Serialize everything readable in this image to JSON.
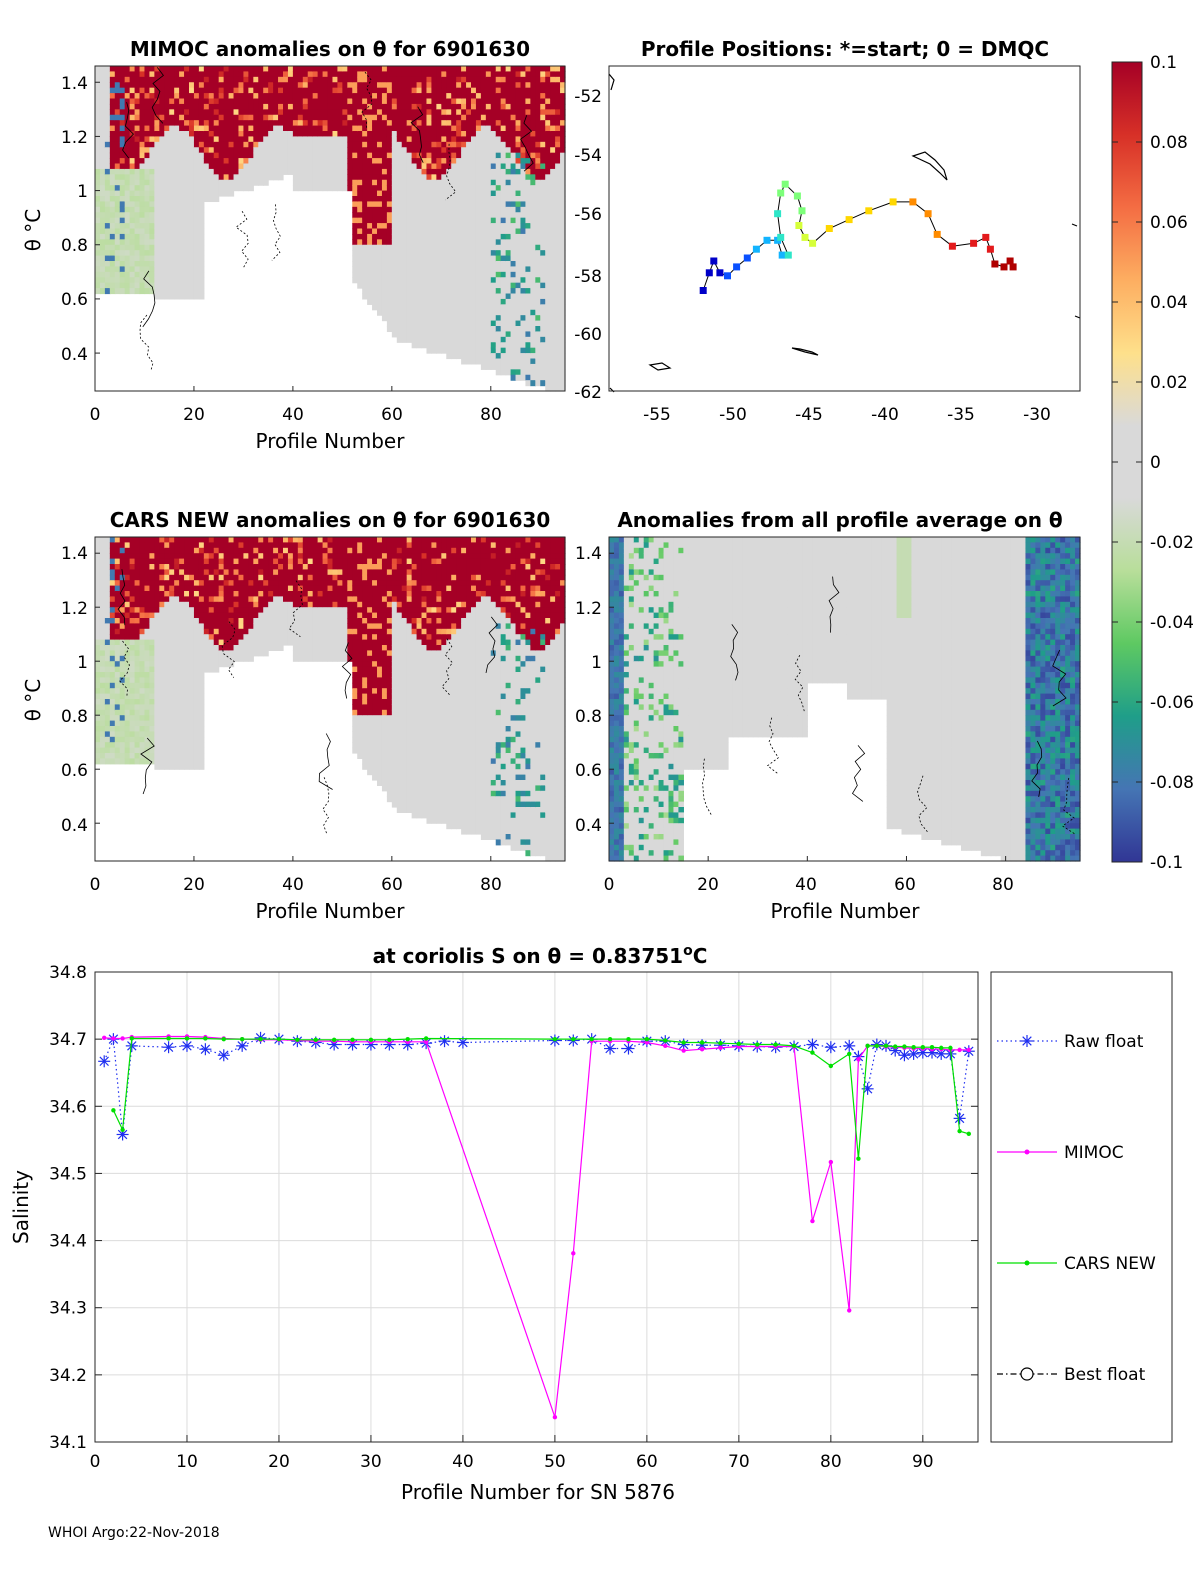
{
  "footer": "WHOI Argo:22-Nov-2018",
  "colormap": {
    "ticks": [
      "0.1",
      "0.08",
      "0.06",
      "0.04",
      "0.02",
      "0",
      "-0.02",
      "-0.04",
      "-0.06",
      "-0.08",
      "-0.1"
    ],
    "values": [
      0.1,
      0.08,
      0.06,
      0.04,
      0.02,
      0,
      -0.02,
      -0.04,
      -0.06,
      -0.08,
      -0.1
    ],
    "stops": [
      "#313695",
      "#4575b4",
      "#1f9e89",
      "#5ec962",
      "#b8de9a",
      "#d9d9d9",
      "#d9d9d9",
      "#fee08b",
      "#fdae61",
      "#f46d43",
      "#d73027",
      "#a50026"
    ]
  },
  "panels": {
    "mimoc_anom": {
      "title": "MIMOC anomalies on θ  for 6901630",
      "xlabel": "Profile Number",
      "ylabel": "θ °C",
      "xticks": [
        "0",
        "20",
        "40",
        "60",
        "80"
      ],
      "yticks": [
        "1.4",
        "1.2",
        "1",
        "0.8",
        "0.6",
        "0.4"
      ],
      "xlim": [
        0,
        95
      ],
      "ylim": [
        0.26,
        1.46
      ]
    },
    "positions": {
      "title": "Profile Positions: *=start; 0 = DMQC",
      "xticks": [
        "-55",
        "-50",
        "-45",
        "-40",
        "-35",
        "-30"
      ],
      "yticks": [
        "-52",
        "-54",
        "-56",
        "-58",
        "-60",
        "-62"
      ],
      "xlim": [
        -58,
        -27
      ],
      "ylim": [
        -62,
        -51
      ]
    },
    "cars_anom": {
      "title": "CARS NEW anomalies on θ for 6901630",
      "xlabel": "Profile Number",
      "ylabel": "θ °C",
      "xticks": [
        "0",
        "20",
        "40",
        "60",
        "80"
      ],
      "yticks": [
        "1.4",
        "1.2",
        "1",
        "0.8",
        "0.6",
        "0.4"
      ],
      "xlim": [
        0,
        95
      ],
      "ylim": [
        0.26,
        1.46
      ]
    },
    "avg_anom": {
      "title": "Anomalies from all profile average on θ",
      "xlabel": "Profile Number",
      "xticks": [
        "0",
        "20",
        "40",
        "60",
        "80"
      ],
      "yticks": [
        "1.4",
        "1.2",
        "1",
        "0.8",
        "0.6",
        "0.4"
      ],
      "xlim": [
        0,
        95
      ],
      "ylim": [
        0.26,
        1.46
      ]
    }
  },
  "chart_data": {
    "type": "line",
    "title": "at coriolis S on θ = 0.83751°C",
    "title_prefix": "at coriolis S on θ = 0.83751",
    "title_sup": "o",
    "title_suffix": "C",
    "xlabel": "Profile Number for SN 5876",
    "ylabel": "Salinity",
    "xlim": [
      0,
      96
    ],
    "ylim": [
      34.1,
      34.8
    ],
    "xticks": [
      0,
      10,
      20,
      30,
      40,
      50,
      60,
      70,
      80,
      90
    ],
    "yticks": [
      34.1,
      34.2,
      34.3,
      34.4,
      34.5,
      34.6,
      34.7,
      34.8
    ],
    "grid": true,
    "series": [
      {
        "name": "Raw float",
        "color": "#1f2ff0",
        "marker": "asterisk",
        "line": "dotted",
        "x": [
          1,
          2,
          3,
          4,
          8,
          10,
          12,
          14,
          16,
          18,
          20,
          22,
          24,
          26,
          28,
          30,
          32,
          34,
          36,
          38,
          40,
          50,
          52,
          54,
          56,
          58,
          60,
          62,
          64,
          66,
          68,
          70,
          72,
          74,
          76,
          78,
          80,
          82,
          83,
          84,
          85,
          86,
          87,
          88,
          89,
          90,
          91,
          92,
          93,
          94,
          95
        ],
        "y": [
          34.667,
          34.7,
          34.558,
          34.69,
          34.688,
          34.69,
          34.685,
          34.676,
          34.69,
          34.702,
          34.7,
          34.697,
          34.695,
          34.692,
          34.692,
          34.692,
          34.692,
          34.692,
          34.694,
          34.697,
          34.695,
          34.698,
          34.698,
          34.7,
          34.686,
          34.686,
          34.697,
          34.697,
          34.692,
          34.691,
          34.691,
          34.69,
          34.689,
          34.688,
          34.689,
          34.692,
          34.688,
          34.69,
          34.674,
          34.626,
          34.692,
          34.69,
          34.683,
          34.676,
          34.678,
          34.68,
          34.68,
          34.678,
          34.678,
          34.582,
          34.682
        ]
      },
      {
        "name": "MIMOC",
        "color": "#ff00ff",
        "marker": "dot",
        "line": "solid",
        "x": [
          1,
          2,
          3,
          4,
          8,
          10,
          12,
          14,
          16,
          18,
          20,
          22,
          24,
          26,
          28,
          30,
          32,
          34,
          36,
          50,
          52,
          54,
          56,
          58,
          60,
          62,
          64,
          66,
          68,
          70,
          72,
          74,
          76,
          78,
          80,
          82,
          83,
          84,
          85,
          86,
          87,
          88,
          89,
          90,
          91,
          92,
          93,
          94,
          95
        ],
        "y": [
          34.702,
          34.701,
          34.701,
          34.703,
          34.704,
          34.704,
          34.703,
          34.701,
          34.7,
          34.699,
          34.699,
          34.698,
          34.697,
          34.697,
          34.696,
          34.696,
          34.696,
          34.696,
          34.696,
          34.137,
          34.381,
          34.697,
          34.697,
          34.697,
          34.695,
          34.69,
          34.683,
          34.685,
          34.687,
          34.689,
          34.689,
          34.689,
          34.689,
          34.429,
          34.517,
          34.296,
          34.67,
          34.69,
          34.69,
          34.689,
          34.688,
          34.687,
          34.686,
          34.686,
          34.685,
          34.685,
          34.684,
          34.684,
          34.684
        ]
      },
      {
        "name": "CARS NEW",
        "color": "#00e000",
        "marker": "dot",
        "line": "solid",
        "x": [
          2,
          3,
          4,
          8,
          10,
          12,
          14,
          16,
          18,
          20,
          22,
          24,
          26,
          28,
          30,
          32,
          34,
          36,
          50,
          52,
          54,
          56,
          58,
          60,
          62,
          64,
          66,
          68,
          70,
          72,
          74,
          76,
          78,
          80,
          82,
          83,
          84,
          85,
          86,
          87,
          88,
          89,
          90,
          91,
          92,
          93,
          94,
          95
        ],
        "y": [
          34.594,
          34.565,
          34.701,
          34.701,
          34.701,
          34.701,
          34.7,
          34.7,
          34.7,
          34.7,
          34.699,
          34.699,
          34.699,
          34.699,
          34.699,
          34.699,
          34.7,
          34.701,
          34.7,
          34.7,
          34.7,
          34.7,
          34.7,
          34.7,
          34.698,
          34.695,
          34.695,
          34.694,
          34.693,
          34.692,
          34.692,
          34.69,
          34.68,
          34.66,
          34.678,
          34.522,
          34.69,
          34.69,
          34.69,
          34.689,
          34.689,
          34.688,
          34.688,
          34.688,
          34.687,
          34.687,
          34.563,
          34.559
        ]
      },
      {
        "name": "Best float",
        "color": "#000000",
        "marker": "circle",
        "line": "dashdot",
        "x": [],
        "y": []
      }
    ]
  }
}
